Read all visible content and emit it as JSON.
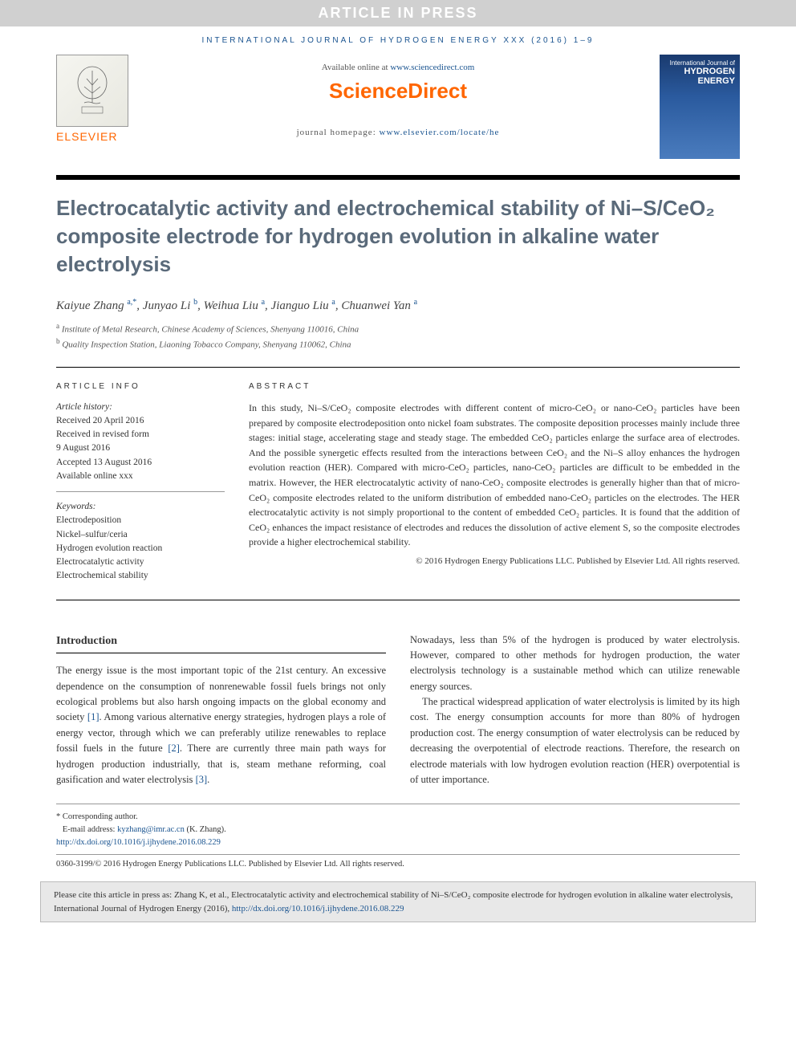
{
  "banner": "ARTICLE IN PRESS",
  "journal_header": "INTERNATIONAL JOURNAL OF HYDROGEN ENERGY XXX (2016) 1–9",
  "available_text": "Available online at ",
  "available_link": "www.sciencedirect.com",
  "sciencedirect": "ScienceDirect",
  "homepage_text": "journal homepage: ",
  "homepage_link": "www.elsevier.com/locate/he",
  "elsevier": "ELSEVIER",
  "cover": {
    "top": "International Journal of",
    "main": "HYDROGEN ENERGY"
  },
  "title": "Electrocatalytic activity and electrochemical stability of Ni–S/CeO₂ composite electrode for hydrogen evolution in alkaline water electrolysis",
  "authors_html": "Kaiyue Zhang <sup>a,</sup><span class='corr'><sup>*</sup></span>, Junyao Li <sup>b</sup>, Weihua Liu <sup>a</sup>, Jianguo Liu <sup>a</sup>, Chuanwei Yan <sup>a</sup>",
  "affiliations": {
    "a": "Institute of Metal Research, Chinese Academy of Sciences, Shenyang 110016, China",
    "b": "Quality Inspection Station, Liaoning Tobacco Company, Shenyang 110062, China"
  },
  "info": {
    "heading": "ARTICLE INFO",
    "history_label": "Article history:",
    "received": "Received 20 April 2016",
    "revised1": "Received in revised form",
    "revised2": "9 August 2016",
    "accepted": "Accepted 13 August 2016",
    "online": "Available online xxx",
    "keywords_label": "Keywords:",
    "keywords": [
      "Electrodeposition",
      "Nickel–sulfur/ceria",
      "Hydrogen evolution reaction",
      "Electrocatalytic activity",
      "Electrochemical stability"
    ]
  },
  "abstract": {
    "heading": "ABSTRACT",
    "text": "In this study, Ni–S/CeO₂ composite electrodes with different content of micro-CeO₂ or nano-CeO₂ particles have been prepared by composite electrodeposition onto nickel foam substrates. The composite deposition processes mainly include three stages: initial stage, accelerating stage and steady stage. The embedded CeO₂ particles enlarge the surface area of electrodes. And the possible synergetic effects resulted from the interactions between CeO₂ and the Ni–S alloy enhances the hydrogen evolution reaction (HER). Compared with micro-CeO₂ particles, nano-CeO₂ particles are difficult to be embedded in the matrix. However, the HER electrocatalytic activity of nano-CeO₂ composite electrodes is generally higher than that of micro-CeO₂ composite electrodes related to the uniform distribution of embedded nano-CeO₂ particles on the electrodes. The HER electrocatalytic activity is not simply proportional to the content of embedded CeO₂ particles. It is found that the addition of CeO₂ enhances the impact resistance of electrodes and reduces the dissolution of active element S, so the composite electrodes provide a higher electrochemical stability.",
    "copyright": "© 2016 Hydrogen Energy Publications LLC. Published by Elsevier Ltd. All rights reserved."
  },
  "intro": {
    "heading": "Introduction",
    "p1": "The energy issue is the most important topic of the 21st century. An excessive dependence on the consumption of nonrenewable fossil fuels brings not only ecological problems but also harsh ongoing impacts on the global economy and society [1]. Among various alternative energy strategies, hydrogen plays a role of energy vector, through which we can preferably utilize renewables to replace fossil fuels in the future [2]. There are currently three main path ways for hydrogen production industrially, that is, steam methane reforming, coal gasification and water electrolysis [3].",
    "p2": "Nowadays, less than 5% of the hydrogen is produced by water electrolysis. However, compared to other methods for hydrogen production, the water electrolysis technology is a sustainable method which can utilize renewable energy sources.",
    "p3": "The practical widespread application of water electrolysis is limited by its high cost. The energy consumption accounts for more than 80% of hydrogen production cost. The energy consumption of water electrolysis can be reduced by decreasing the overpotential of electrode reactions. Therefore, the research on electrode materials with low hydrogen evolution reaction (HER) overpotential is of utter importance."
  },
  "footer": {
    "corr_label": "* Corresponding author.",
    "email_label": "E-mail address: ",
    "email": "kyzhang@imr.ac.cn",
    "email_name": " (K. Zhang).",
    "doi": "http://dx.doi.org/10.1016/j.ijhydene.2016.08.229",
    "issn": "0360-3199/© 2016 Hydrogen Energy Publications LLC. Published by Elsevier Ltd. All rights reserved."
  },
  "cite": "Please cite this article in press as: Zhang K, et al., Electrocatalytic activity and electrochemical stability of Ni–S/CeO₂ composite electrode for hydrogen evolution in alkaline water electrolysis, International Journal of Hydrogen Energy (2016), http://dx.doi.org/10.1016/j.ijhydene.2016.08.229"
}
